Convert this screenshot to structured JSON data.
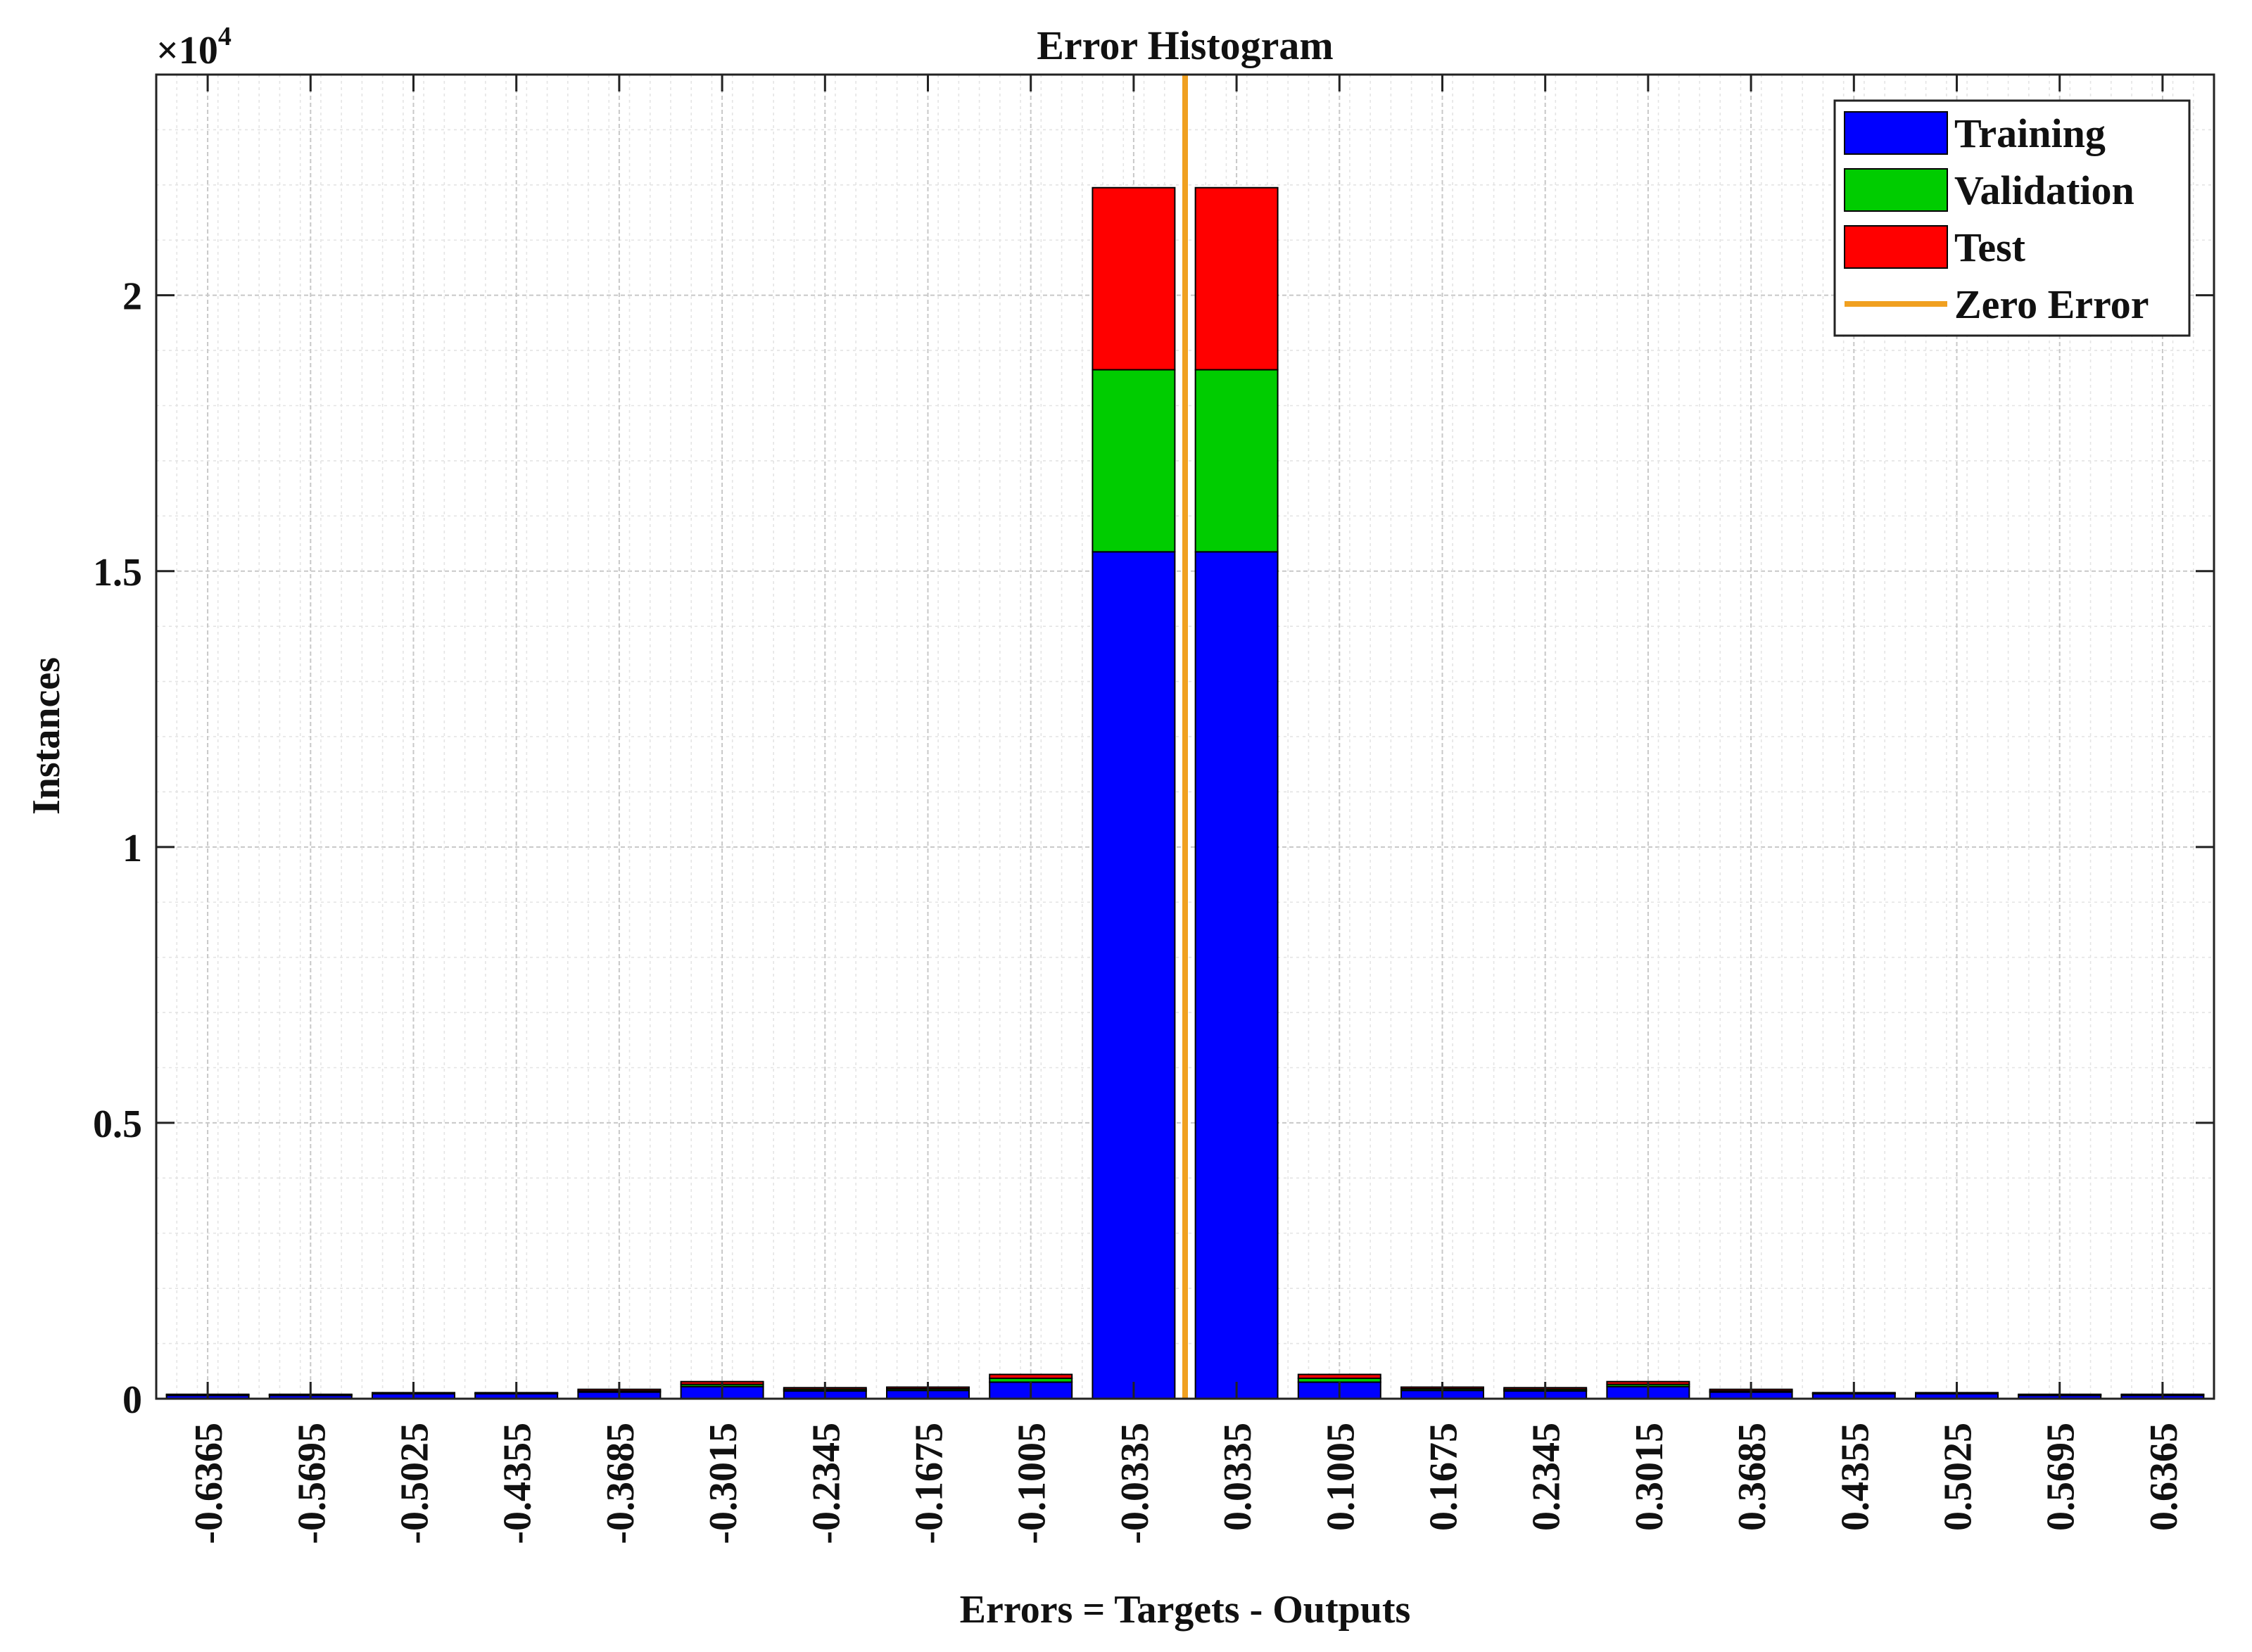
{
  "chart_data": {
    "type": "bar",
    "stacked": true,
    "title": "Error Histogram",
    "xlabel": "Errors = Targets - Outputs",
    "ylabel": "Instances",
    "y_multiplier_base": "×10",
    "y_multiplier_exponent": "4",
    "ylim": [
      0,
      2.4
    ],
    "yticks": [
      "0",
      "0.5",
      "1",
      "1.5",
      "2"
    ],
    "grid": true,
    "legend_position": "top-right",
    "categories": [
      "-0.6365",
      "-0.5695",
      "-0.5025",
      "-0.4355",
      "-0.3685",
      "-0.3015",
      "-0.2345",
      "-0.1675",
      "-0.1005",
      "-0.0335",
      "0.0335",
      "0.1005",
      "0.1675",
      "0.2345",
      "0.3015",
      "0.3685",
      "0.4355",
      "0.5025",
      "0.5695",
      "0.6365"
    ],
    "series": [
      {
        "name": "Training",
        "color": "#0000ff",
        "values": [
          0.006,
          0.006,
          0.009,
          0.009,
          0.012,
          0.022,
          0.014,
          0.015,
          0.03,
          1.535,
          1.535,
          0.03,
          0.015,
          0.014,
          0.022,
          0.012,
          0.009,
          0.009,
          0.006,
          0.006
        ]
      },
      {
        "name": "Validation",
        "color": "#00cc00",
        "values": [
          0.001,
          0.001,
          0.001,
          0.001,
          0.002,
          0.004,
          0.003,
          0.003,
          0.007,
          0.33,
          0.33,
          0.007,
          0.003,
          0.003,
          0.004,
          0.002,
          0.001,
          0.001,
          0.001,
          0.001
        ]
      },
      {
        "name": "Test",
        "color": "#ff0000",
        "values": [
          0.001,
          0.001,
          0.001,
          0.001,
          0.003,
          0.005,
          0.003,
          0.003,
          0.007,
          0.33,
          0.33,
          0.007,
          0.003,
          0.003,
          0.005,
          0.003,
          0.001,
          0.001,
          0.001,
          0.001
        ]
      }
    ],
    "reference_line": {
      "name": "Zero Error",
      "x": 0,
      "color": "#f0a020"
    }
  }
}
